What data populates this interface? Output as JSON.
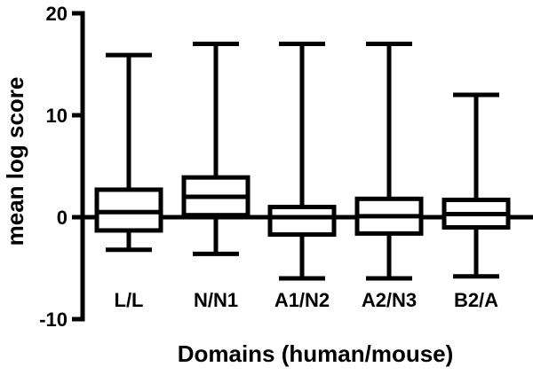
{
  "chart_data": {
    "type": "box",
    "title": "",
    "xlabel": "Domains (human/mouse)",
    "ylabel": "mean log score",
    "ylim": [
      -10,
      20
    ],
    "yticks": [
      -10,
      0,
      10,
      20
    ],
    "zero_line": true,
    "categories": [
      "L/L",
      "N/N1",
      "A1/N2",
      "A2/N3",
      "B2/A"
    ],
    "boxes": [
      {
        "min": -3.2,
        "q1": -1.3,
        "median": 0.5,
        "q3": 2.7,
        "max": 15.9
      },
      {
        "min": -3.6,
        "q1": 0.2,
        "median": 2.0,
        "q3": 3.9,
        "max": 17.0
      },
      {
        "min": -6.0,
        "q1": -1.7,
        "median": 0.0,
        "q3": 1.0,
        "max": 17.0
      },
      {
        "min": -6.0,
        "q1": -1.6,
        "median": 0.1,
        "q3": 1.8,
        "max": 17.0
      },
      {
        "min": -5.8,
        "q1": -1.0,
        "median": 0.3,
        "q3": 1.7,
        "max": 12.0
      }
    ]
  }
}
